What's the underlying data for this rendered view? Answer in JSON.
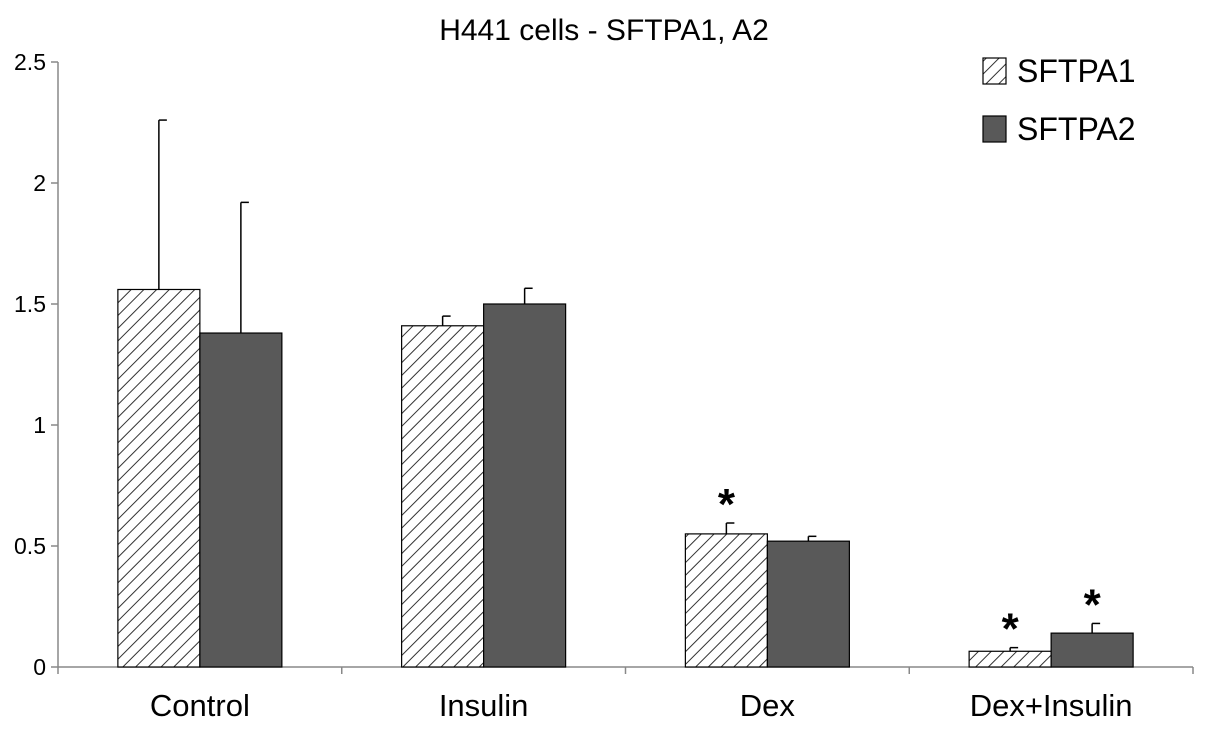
{
  "chart_data": {
    "type": "bar",
    "title": "H441 cells - SFTPA1, A2",
    "xlabel": "",
    "ylabel": "",
    "categories": [
      "Control",
      "Insulin",
      "Dex",
      "Dex+Insulin"
    ],
    "ylim": [
      0,
      2.5
    ],
    "yticks": [
      "0",
      "0.5",
      "1",
      "1.5",
      "2",
      "2.5"
    ],
    "grid": false,
    "legend_position": "top-right",
    "series": [
      {
        "name": "SFTPA1",
        "style": "hatched",
        "color": "#ffffff",
        "values": [
          1.56,
          1.41,
          0.55,
          0.065
        ],
        "errors": [
          0.7,
          0.04,
          0.045,
          0.015
        ],
        "annotations": [
          "",
          "",
          "*",
          "*"
        ]
      },
      {
        "name": "SFTPA2",
        "style": "solid",
        "color": "#595959",
        "values": [
          1.38,
          1.5,
          0.52,
          0.14
        ],
        "errors": [
          0.54,
          0.065,
          0.02,
          0.04
        ],
        "annotations": [
          "",
          "",
          "",
          "*"
        ]
      }
    ]
  }
}
